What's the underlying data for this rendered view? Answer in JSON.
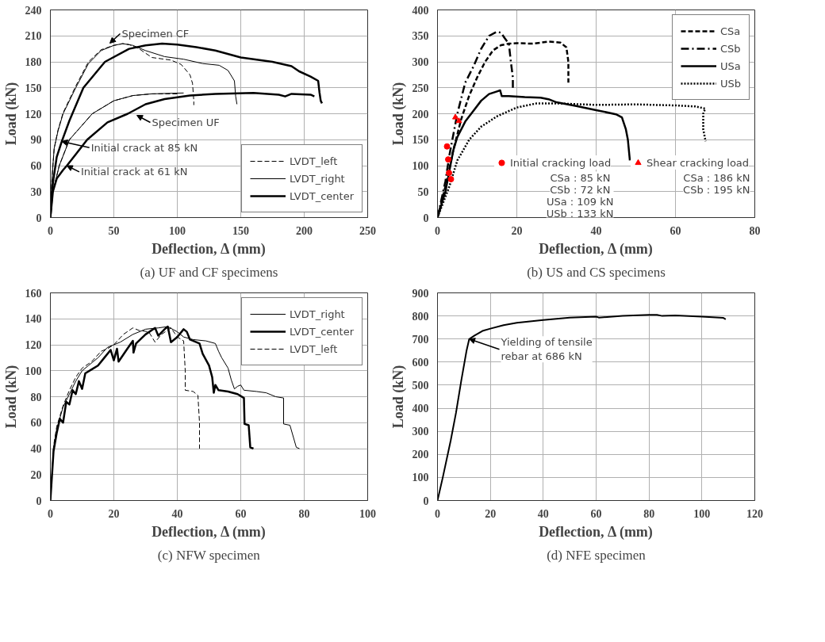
{
  "chart_data": [
    {
      "type": "line",
      "title": "(a) UF and CF specimens",
      "xlabel": "Deflection, Δ (mm)",
      "ylabel": "Load (kN)",
      "xlim": [
        0,
        250
      ],
      "ylim": [
        0,
        240
      ],
      "xticks": [
        0,
        50,
        100,
        150,
        200,
        250
      ],
      "yticks": [
        0,
        30,
        60,
        90,
        120,
        150,
        180,
        210,
        240
      ],
      "grid": true,
      "legend": "bottom right",
      "series": [
        {
          "name": "LVDT_left",
          "color": "#000000",
          "line_style": "dashed",
          "x": [
            0,
            1,
            3,
            6,
            10,
            20,
            30,
            40,
            50,
            57,
            62,
            70,
            80,
            95,
            103,
            110,
            112,
            113,
            113
          ],
          "values": [
            0,
            40,
            80,
            101,
            121,
            152,
            180,
            194,
            199,
            201,
            200,
            195,
            185,
            182,
            177,
            165,
            155,
            135,
            130
          ]
        },
        {
          "name": "LVDT_right",
          "color": "#000000",
          "line_style": "solid",
          "x": [
            0,
            1,
            3,
            6,
            10,
            20,
            30,
            40,
            50,
            57,
            65,
            75,
            90,
            105,
            120,
            133,
            140,
            145,
            146,
            147
          ],
          "values": [
            0,
            40,
            80,
            100,
            120,
            150,
            178,
            193,
            199,
            201,
            199,
            193,
            186,
            183,
            178,
            176,
            170,
            158,
            140,
            131
          ]
        },
        {
          "name": "LVDT_center",
          "color": "#000000",
          "line_style": "solid",
          "x": [
            0,
            2,
            5,
            9,
            15,
            26,
            43,
            62,
            75,
            88,
            100,
            115,
            130,
            150,
            175,
            190,
            196,
            205,
            211,
            212,
            213,
            214
          ],
          "values": [
            0,
            40,
            70,
            88,
            112,
            150,
            180,
            195,
            199,
            201,
            200,
            197,
            193,
            185,
            180,
            175,
            169,
            163,
            158,
            145,
            135,
            132
          ]
        },
        {
          "color": "#000000",
          "line_style": "dashed",
          "x": [
            0,
            2,
            7,
            15,
            33,
            50,
            65,
            80,
            100
          ],
          "values": [
            0,
            30,
            60,
            90,
            120,
            135,
            141,
            143,
            143
          ]
        },
        {
          "color": "#000000",
          "line_style": "solid",
          "x": [
            0,
            2,
            7,
            15,
            33,
            50,
            65,
            80,
            105
          ],
          "values": [
            0,
            30,
            60,
            90,
            120,
            135,
            141,
            143,
            144
          ]
        },
        {
          "color": "#000000",
          "line_style": "solid",
          "x": [
            0,
            2,
            5,
            10,
            13,
            20,
            29,
            45,
            61,
            75,
            90,
            110,
            130,
            160,
            180,
            185,
            190,
            205,
            208
          ],
          "values": [
            0,
            30,
            45,
            55,
            60,
            73,
            90,
            110,
            120,
            131,
            137,
            141,
            143,
            144,
            142,
            140,
            143,
            142,
            140
          ]
        }
      ],
      "annotations": [
        "Specimen CF",
        "Specimen UF",
        {
          "text": "Initial crack at 85 kN",
          "x": 9,
          "y": 88
        },
        {
          "text": "Initial crack at 61 kN",
          "x": 13,
          "y": 60
        }
      ]
    },
    {
      "type": "line",
      "title": "(b) US and CS specimens",
      "xlabel": "Deflection, Δ (mm)",
      "ylabel": "Load (kN)",
      "xlim": [
        0,
        80
      ],
      "ylim": [
        0,
        400
      ],
      "xticks": [
        0,
        20,
        40,
        60,
        80
      ],
      "yticks": [
        0,
        50,
        100,
        150,
        200,
        250,
        300,
        350,
        400
      ],
      "grid": true,
      "legend": "top right",
      "series": [
        {
          "name": "CSa",
          "color": "#000000",
          "line_style": "dashed",
          "x": [
            0,
            2,
            4,
            6,
            8,
            10,
            12,
            14,
            16,
            18,
            20,
            24,
            28,
            31,
            32.5,
            33,
            33
          ],
          "values": [
            0,
            60,
            130,
            190,
            235,
            270,
            300,
            322,
            332,
            335,
            336,
            335,
            339,
            337,
            328,
            300,
            260
          ]
        },
        {
          "name": "CSb",
          "color": "#000000",
          "line_style": "dashdot",
          "x": [
            0,
            2,
            3,
            5,
            7,
            9,
            11,
            13,
            15,
            16,
            17,
            18,
            18.5,
            19,
            19
          ],
          "values": [
            0,
            70,
            120,
            200,
            260,
            290,
            325,
            350,
            358,
            356,
            345,
            335,
            300,
            270,
            250
          ]
        },
        {
          "name": "USa",
          "color": "#000000",
          "line_style": "solid",
          "x": [
            0,
            2,
            3,
            4,
            5,
            7,
            9,
            11,
            13,
            15,
            15.8,
            16.2,
            18,
            22,
            26,
            28,
            30,
            35,
            40,
            45,
            46.5,
            47.5,
            48,
            48.5
          ],
          "values": [
            0,
            50,
            90,
            130,
            155,
            185,
            205,
            225,
            238,
            243,
            245,
            234,
            234,
            232,
            231,
            228,
            222,
            215,
            207,
            199,
            193,
            170,
            150,
            110
          ]
        },
        {
          "name": "USb",
          "color": "#000000",
          "line_style": "dotted",
          "x": [
            0,
            3,
            5,
            8,
            11,
            15,
            20,
            25,
            30,
            40,
            50,
            60,
            65,
            67.5,
            67,
            67,
            67.6
          ],
          "values": [
            0,
            60,
            110,
            150,
            175,
            195,
            212,
            220,
            220,
            217,
            218,
            216,
            214,
            210,
            200,
            170,
            147
          ]
        },
        {
          "name": "Initial cracking load",
          "type": "scatter",
          "marker": "circle",
          "color": "#ff0000",
          "x": [
            2.4,
            2.7,
            2.9,
            3.4
          ],
          "values": [
            137,
            112,
            86,
            74
          ]
        },
        {
          "name": "Shear cracking load",
          "type": "scatter",
          "marker": "triangle",
          "color": "#ff0000",
          "x": [
            4.5,
            5.4
          ],
          "values": [
            193,
            186
          ]
        }
      ],
      "annotations": [
        "CSa :  85 kN",
        "CSb :  72 kN",
        "USa : 109 kN",
        "USb : 133 kN",
        "CSa : 186 kN",
        "CSb : 195 kN"
      ]
    },
    {
      "type": "line",
      "title": "(c) NFW specimen",
      "xlabel": "Deflection, Δ (mm)",
      "ylabel": "Load (kN)",
      "xlim": [
        0,
        100
      ],
      "ylim": [
        0,
        160
      ],
      "xticks": [
        0,
        20,
        40,
        60,
        80,
        100
      ],
      "yticks": [
        0,
        20,
        40,
        60,
        80,
        100,
        120,
        140,
        160
      ],
      "grid": true,
      "legend": "top right",
      "series": [
        {
          "name": "LVDT_right",
          "color": "#000000",
          "line_style": "solid",
          "x": [
            0,
            1,
            2,
            4,
            6,
            8,
            10,
            12,
            15,
            18,
            22,
            26,
            30,
            34,
            37,
            40,
            42,
            45,
            49,
            52,
            53,
            54,
            56,
            57,
            58,
            59,
            60,
            61,
            65,
            68,
            71,
            73.5,
            73.5,
            75.5,
            77.5,
            78.5
          ],
          "values": [
            0,
            40,
            55,
            72,
            82,
            92,
            100,
            104,
            110,
            118,
            122,
            128,
            132,
            133,
            134,
            130,
            126,
            124,
            123,
            121,
            115,
            110,
            102,
            93,
            86,
            88,
            89,
            85,
            84,
            83,
            80,
            79,
            59,
            58,
            41,
            40
          ]
        },
        {
          "name": "LVDT_center",
          "color": "#000000",
          "line_style": "solid",
          "x": [
            0,
            1,
            2,
            3,
            4,
            5,
            6,
            7,
            8,
            9,
            10,
            11,
            13,
            15,
            17,
            19,
            20,
            21,
            21.5,
            24,
            26,
            26.2,
            27,
            30,
            33,
            34,
            36,
            37,
            38,
            40,
            42,
            43,
            44,
            47,
            48,
            50,
            51,
            51.5,
            52,
            53,
            56,
            59,
            61,
            61.2,
            62.5,
            63,
            64
          ],
          "values": [
            0,
            38,
            52,
            63,
            60,
            76,
            74,
            85,
            82,
            92,
            86,
            98,
            101,
            104,
            110,
            116,
            108,
            117,
            107,
            116,
            123,
            114,
            121,
            128,
            133,
            127,
            132,
            134,
            122,
            126,
            132,
            130,
            124,
            121,
            113,
            104,
            95,
            83,
            89,
            85,
            84,
            82,
            79,
            59,
            58,
            41,
            40
          ]
        },
        {
          "name": "LVDT_left",
          "color": "#000000",
          "line_style": "dashed",
          "x": [
            0,
            1,
            2,
            4,
            6,
            8,
            10,
            13,
            16,
            18,
            20,
            23,
            26,
            28,
            31,
            33,
            35,
            38,
            40,
            42,
            42.5,
            42.5,
            45,
            46.5,
            47,
            47
          ],
          "values": [
            0,
            42,
            57,
            73,
            85,
            95,
            102,
            107,
            115,
            117,
            120,
            128,
            133,
            131,
            130,
            122,
            128,
            133,
            126,
            123,
            100,
            85,
            84,
            81,
            60,
            40
          ]
        }
      ]
    },
    {
      "type": "line",
      "title": "(d) NFE specimen",
      "xlabel": "Deflection, Δ (mm)",
      "ylabel": "Load (kN)",
      "xlim": [
        0,
        120
      ],
      "ylim": [
        0,
        900
      ],
      "xticks": [
        0,
        20,
        40,
        60,
        80,
        100,
        120
      ],
      "yticks": [
        0,
        100,
        200,
        300,
        400,
        500,
        600,
        700,
        800,
        900
      ],
      "grid": true,
      "series": [
        {
          "color": "#000000",
          "line_style": "solid",
          "x": [
            0,
            2,
            5,
            7,
            9,
            11,
            12,
            14,
            17,
            20,
            25,
            30,
            40,
            50,
            60,
            61,
            70,
            80,
            83,
            85,
            90,
            100,
            108,
            109
          ],
          "values": [
            0,
            100,
            260,
            380,
            520,
            650,
            700,
            715,
            735,
            745,
            760,
            770,
            782,
            793,
            797,
            793,
            800,
            805,
            805,
            800,
            802,
            797,
            792,
            785
          ]
        }
      ],
      "annotations": [
        {
          "text": "Yielding of tensile\nrebar at 686 kN",
          "x": 12,
          "y": 700
        }
      ]
    }
  ]
}
